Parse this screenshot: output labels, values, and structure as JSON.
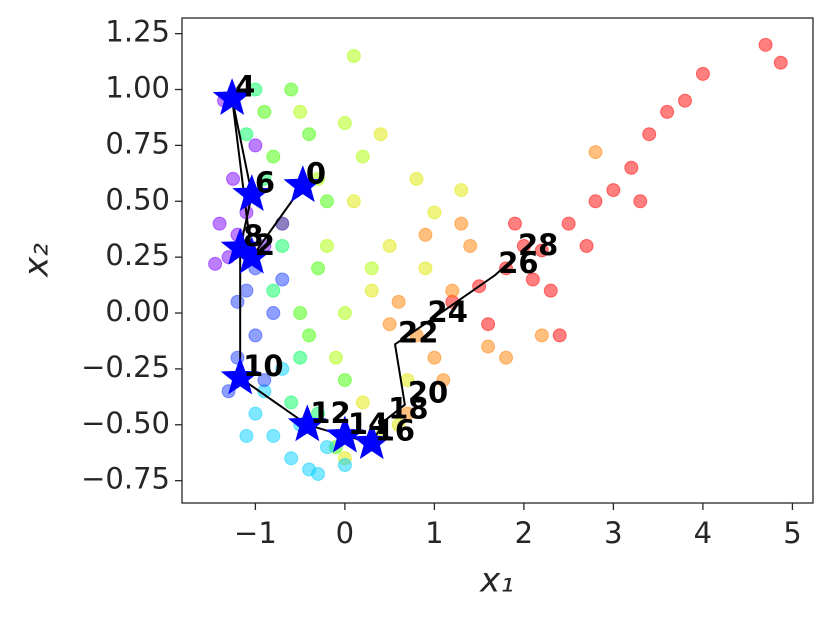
{
  "chart_data": {
    "type": "scatter",
    "xlabel": "x₁",
    "ylabel": "x₂",
    "xlim": [
      -1.82,
      5.23
    ],
    "ylim": [
      -0.85,
      1.32
    ],
    "xticks": [
      {
        "value": -1,
        "label": "−1"
      },
      0,
      1,
      2,
      3,
      4,
      5
    ],
    "yticks": [
      {
        "value": -0.75,
        "label": "−0.75"
      },
      {
        "value": -0.5,
        "label": "−0.50"
      },
      {
        "value": -0.25,
        "label": "−0.25"
      },
      {
        "value": 0,
        "label": "0.00"
      },
      0.25,
      {
        "value": 0.5,
        "label": "0.50"
      },
      0.75,
      {
        "value": 1,
        "label": "1.00"
      },
      1.25
    ],
    "opacity": 0.5,
    "series": [
      {
        "color": "#ff0000",
        "x": [
          1.2,
          1.5,
          1.8,
          2.0,
          2.2,
          2.5,
          2.8,
          3.0,
          3.2,
          3.4,
          3.6,
          3.8,
          4.0,
          4.7,
          4.87,
          1.6,
          2.3,
          2.7,
          3.3,
          1.9,
          2.1,
          2.4
        ],
        "values": [
          0.05,
          0.12,
          0.2,
          0.3,
          0.28,
          0.4,
          0.5,
          0.55,
          0.65,
          0.8,
          0.9,
          0.95,
          1.07,
          1.2,
          1.12,
          -0.05,
          0.1,
          0.3,
          0.5,
          0.4,
          0.15,
          -0.1
        ]
      },
      {
        "color": "#ff8000",
        "x": [
          0.6,
          0.8,
          1.0,
          1.2,
          1.4,
          0.9,
          1.1,
          0.7,
          1.6,
          1.3,
          0.5,
          1.8,
          2.2,
          2.8
        ],
        "values": [
          0.05,
          -0.1,
          -0.2,
          0.1,
          0.3,
          0.35,
          -0.3,
          -0.45,
          -0.15,
          0.4,
          -0.05,
          -0.2,
          -0.1,
          0.72
        ]
      },
      {
        "color": "#e0e800",
        "x": [
          0.2,
          0.4,
          0.6,
          0.3,
          0.5,
          0.0,
          0.8,
          1.0,
          0.9,
          0.1,
          0.4,
          1.3,
          0.7
        ],
        "values": [
          -0.4,
          -0.55,
          -0.5,
          0.1,
          0.3,
          -0.65,
          0.6,
          0.45,
          0.2,
          0.5,
          0.8,
          0.55,
          -0.3
        ]
      },
      {
        "color": "#aaff00",
        "x": [
          0.0,
          -0.2,
          0.3,
          -0.3,
          0.2,
          -0.1,
          0.1,
          -0.5,
          0.0
        ],
        "values": [
          0.0,
          0.3,
          0.2,
          0.6,
          0.7,
          -0.2,
          1.15,
          0.9,
          0.85
        ]
      },
      {
        "color": "#40ff00",
        "x": [
          -0.6,
          -0.4,
          -0.2,
          -0.8,
          -0.3,
          -0.5,
          0.0,
          -0.7,
          -0.9,
          -0.1,
          -0.4
        ],
        "values": [
          1.0,
          0.8,
          0.5,
          0.7,
          0.2,
          0.0,
          -0.3,
          0.4,
          0.9,
          -0.6,
          -0.1
        ]
      },
      {
        "color": "#00ff60",
        "x": [
          -0.9,
          -0.7,
          -1.0,
          -0.5,
          -0.8,
          -0.6,
          -1.1,
          -0.3
        ],
        "values": [
          0.6,
          0.3,
          1.0,
          -0.2,
          0.1,
          -0.4,
          0.8,
          -0.45
        ]
      },
      {
        "color": "#00d0ff",
        "x": [
          -1.0,
          -0.8,
          -0.6,
          -0.4,
          -0.2,
          -0.9,
          -0.7,
          -0.5,
          0.0,
          -1.1,
          -0.3
        ],
        "values": [
          -0.45,
          -0.55,
          -0.65,
          -0.7,
          -0.6,
          -0.35,
          -0.25,
          -0.5,
          -0.68,
          -0.55,
          -0.72
        ]
      },
      {
        "color": "#2040ff",
        "x": [
          -1.2,
          -1.0,
          -0.8,
          -1.1,
          -0.9,
          -1.3,
          -0.7,
          -1.0,
          -1.2
        ],
        "values": [
          -0.2,
          -0.1,
          0.0,
          0.1,
          -0.3,
          -0.35,
          0.15,
          0.2,
          0.05
        ]
      },
      {
        "color": "#7a00ff",
        "x": [
          -1.4,
          -1.2,
          -1.3,
          -1.1,
          -0.9,
          -1.45,
          -1.25,
          -1.0,
          -0.7,
          -1.35
        ],
        "values": [
          0.4,
          0.35,
          0.25,
          0.45,
          0.3,
          0.22,
          0.6,
          0.75,
          0.4,
          0.95
        ]
      }
    ],
    "trajectory": {
      "line_color": "#000000",
      "marker_color": "#0000ff",
      "labels": [
        "0",
        "2",
        "4",
        "6",
        "8",
        "10",
        "12",
        "14",
        "16",
        "18",
        "20",
        "22",
        "24",
        "26",
        "28"
      ],
      "markers": [
        "star",
        "star",
        "star",
        "star",
        "star",
        "star",
        "star",
        "star",
        "star",
        null,
        null,
        null,
        null,
        null,
        null
      ],
      "x": [
        -0.47,
        -1.04,
        -1.26,
        -1.04,
        -1.17,
        -1.17,
        -0.42,
        0.0,
        0.3,
        0.45,
        0.67,
        0.56,
        0.89,
        1.68,
        1.9
      ],
      "values": [
        0.57,
        0.25,
        0.96,
        0.53,
        0.29,
        -0.29,
        -0.5,
        -0.55,
        -0.58,
        -0.48,
        -0.41,
        -0.14,
        -0.05,
        0.17,
        0.25
      ]
    }
  }
}
